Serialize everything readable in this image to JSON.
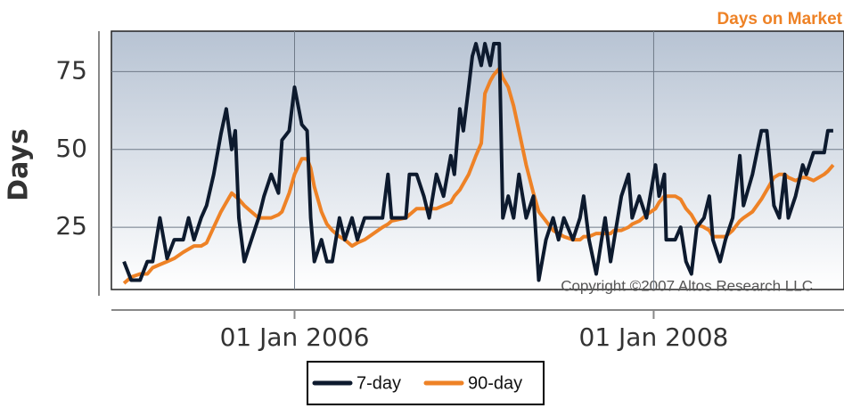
{
  "chart_data": {
    "type": "line",
    "title": "Days on Market",
    "y_label": "Days",
    "annotation": "Copyright ©2007 Altos Research LLC",
    "x": [
      2005.05,
      2005.09,
      2005.14,
      2005.18,
      2005.21,
      2005.25,
      2005.29,
      2005.33,
      2005.38,
      2005.41,
      2005.44,
      2005.48,
      2005.51,
      2005.55,
      2005.59,
      2005.62,
      2005.65,
      2005.67,
      2005.69,
      2005.72,
      2005.76,
      2005.8,
      2005.83,
      2005.87,
      2005.91,
      2005.93,
      2005.97,
      2006.0,
      2006.04,
      2006.07,
      2006.09,
      2006.11,
      2006.15,
      2006.18,
      2006.21,
      2006.25,
      2006.28,
      2006.32,
      2006.35,
      2006.39,
      2006.49,
      2006.52,
      2006.54,
      2006.62,
      2006.64,
      2006.68,
      2006.72,
      2006.75,
      2006.79,
      2006.83,
      2006.87,
      2006.89,
      2006.92,
      2006.94,
      2006.97,
      2006.99,
      2007.01,
      2007.04,
      2007.06,
      2007.09,
      2007.11,
      2007.14,
      2007.16,
      2007.19,
      2007.22,
      2007.25,
      2007.29,
      2007.33,
      2007.36,
      2007.4,
      2007.44,
      2007.47,
      2007.5,
      2007.55,
      2007.59,
      2007.61,
      2007.64,
      2007.68,
      2007.71,
      2007.73,
      2007.76,
      2007.78,
      2007.82,
      2007.86,
      2007.88,
      2007.92,
      2007.96,
      2008.01,
      2008.03,
      2008.06,
      2008.07,
      2008.12,
      2008.15,
      2008.18,
      2008.21,
      2008.24,
      2008.28,
      2008.31,
      2008.33,
      2008.37,
      2008.4,
      2008.44,
      2008.48,
      2008.5,
      2008.55,
      2008.6,
      2008.63,
      2008.67,
      2008.7,
      2008.73,
      2008.75,
      2008.79,
      2008.83,
      2008.85,
      2008.89,
      2008.95,
      2008.97,
      2009.0
    ],
    "series": [
      {
        "name": "7-day",
        "color": "#0d1a2e",
        "values": [
          14,
          8,
          8,
          14,
          14,
          28,
          15,
          21,
          21,
          28,
          21,
          28,
          32,
          42,
          55,
          63,
          50,
          56,
          28,
          14,
          21,
          28,
          35,
          42,
          36,
          53,
          56,
          70,
          58,
          56,
          28,
          14,
          21,
          14,
          14,
          28,
          21,
          28,
          21,
          28,
          28,
          42,
          28,
          28,
          42,
          42,
          35,
          28,
          42,
          35,
          48,
          42,
          63,
          56,
          70,
          80,
          84,
          77,
          84,
          77,
          84,
          84,
          28,
          35,
          28,
          42,
          28,
          35,
          8,
          21,
          28,
          21,
          28,
          21,
          28,
          35,
          21,
          10,
          21,
          28,
          14,
          21,
          35,
          42,
          28,
          35,
          28,
          45,
          35,
          42,
          21,
          21,
          25,
          14,
          10,
          25,
          28,
          35,
          21,
          14,
          21,
          28,
          48,
          32,
          42,
          56,
          56,
          32,
          28,
          42,
          28,
          35,
          45,
          42,
          49,
          49,
          56,
          56
        ]
      },
      {
        "name": "90-day",
        "color": "#ee8226",
        "values": [
          7,
          9,
          10,
          10,
          12,
          13,
          14,
          15,
          17,
          18,
          19,
          19,
          20,
          25,
          30,
          33,
          36,
          35,
          34,
          32,
          30,
          28,
          28,
          28,
          29,
          30,
          36,
          42,
          47,
          47,
          44,
          38,
          30,
          26,
          24,
          22,
          21,
          19,
          20,
          21,
          25,
          26,
          27,
          28,
          29,
          31,
          31,
          31,
          31,
          32,
          33,
          35,
          37,
          39,
          42,
          45,
          48,
          52,
          68,
          72,
          74,
          76,
          73,
          70,
          64,
          56,
          45,
          36,
          30,
          27,
          24,
          23,
          22,
          21,
          21,
          22,
          22,
          23,
          23,
          23,
          23,
          24,
          24,
          25,
          26,
          27,
          29,
          31,
          33,
          35,
          35,
          35,
          34,
          31,
          29,
          26,
          25,
          24,
          22,
          22,
          22,
          24,
          27,
          28,
          30,
          34,
          37,
          41,
          42,
          42,
          41,
          40,
          41,
          41,
          40,
          42,
          43,
          45
        ]
      }
    ],
    "xlim": [
      2004.98,
      2009.06
    ],
    "xticks": [
      {
        "value": 2006,
        "label": "01 Jan 2006"
      },
      {
        "value": 2008,
        "label": "01 Jan 2008"
      }
    ],
    "ylim": [
      5,
      88
    ],
    "yticks": [
      25,
      50,
      75
    ],
    "grid": true,
    "legend": "bottom"
  }
}
